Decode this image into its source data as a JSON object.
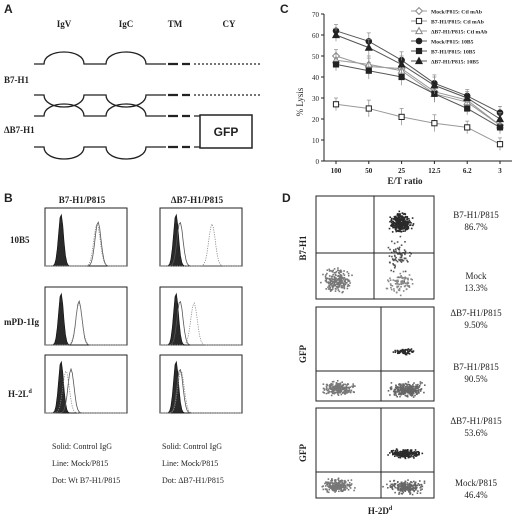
{
  "panels": {
    "a": {
      "letter": "A",
      "domains": [
        "IgV",
        "IgC",
        "TM",
        "CY"
      ],
      "rows": [
        "B7-H1",
        "ΔB7-H1"
      ],
      "gfp_label": "GFP"
    },
    "b": {
      "letter": "B",
      "columns": [
        "B7-H1/P815",
        "ΔB7-H1/P815"
      ],
      "rows": [
        "10B5",
        "mPD-1Ig",
        "H-2L"
      ],
      "row3_superscript": "d",
      "legend_left": [
        "Solid: Control IgG",
        "Line: Mock/P815",
        "Dot:  Wt B7-H1/P815"
      ],
      "legend_right": [
        "Solid: Control IgG",
        "Line: Mock/P815",
        "Dot:  ΔB7-H1/P815"
      ]
    },
    "c": {
      "letter": "C"
    },
    "d": {
      "letter": "D",
      "x_axis_label": "H-2D",
      "x_axis_superscript": "d",
      "plots": [
        {
          "y_label": "B7-H1",
          "top_label": "B7-H1/P815",
          "top_pct": "86.7%",
          "bottom_label": "Mock",
          "bottom_pct": "13.3%"
        },
        {
          "y_label": "GFP",
          "top_label": "ΔB7-H1/P815",
          "top_pct": "9.50%",
          "bottom_label": "B7-H1/P815",
          "bottom_pct": "90.5%"
        },
        {
          "y_label": "GFP",
          "top_label": "ΔB7-H1/P815",
          "top_pct": "53.6%",
          "bottom_label": "Mock/P815",
          "bottom_pct": "46.4%"
        }
      ]
    }
  },
  "chart_data": {
    "type": "line",
    "title": "",
    "xlabel": "E/T ratio",
    "ylabel": "% Lysis",
    "categories": [
      "100",
      "50",
      "25",
      "12.5",
      "6.2",
      "3"
    ],
    "ylim": [
      0,
      70
    ],
    "yticks": [
      0,
      10,
      20,
      30,
      40,
      50,
      60,
      70
    ],
    "grid": false,
    "legend_placement": "top-right",
    "series": [
      {
        "name": "Mock/P815: Ctl mAb",
        "values": [
          50,
          45,
          44,
          33,
          29,
          17
        ],
        "marker": "open-diamond"
      },
      {
        "name": "B7-H1/P815: Ctl mAb",
        "values": [
          27,
          25,
          21,
          18,
          16,
          8
        ],
        "marker": "open-square"
      },
      {
        "name": "ΔB7-H1/P815: Ctl mAb",
        "values": [
          48,
          46,
          43,
          32,
          28,
          17
        ],
        "marker": "open-triangle"
      },
      {
        "name": "Mock/P815: 10B5",
        "values": [
          62,
          57,
          48,
          37,
          31,
          23
        ],
        "marker": "filled-circle"
      },
      {
        "name": "B7-H1/P815: 10B5",
        "values": [
          46,
          43,
          40,
          32,
          25,
          16
        ],
        "marker": "filled-square"
      },
      {
        "name": "ΔB7-H1/P815: 10B5",
        "values": [
          60,
          54,
          46,
          36,
          30,
          20
        ],
        "marker": "filled-triangle"
      }
    ],
    "error": [
      3,
      4,
      4,
      4,
      3,
      3
    ]
  }
}
